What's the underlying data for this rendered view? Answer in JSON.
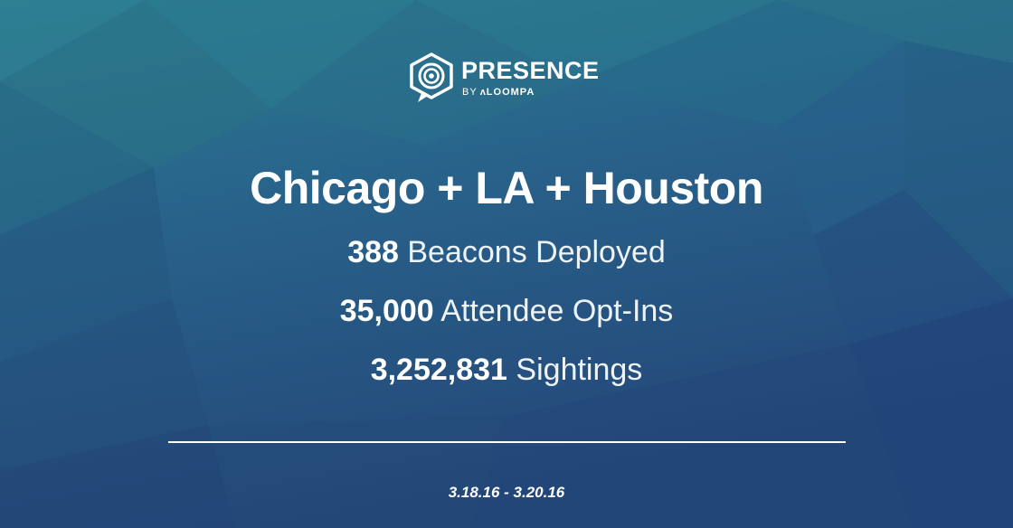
{
  "logo": {
    "name": "PRESENCE",
    "by": "BY",
    "sub_brand": "ʌLOOMPA"
  },
  "headline": "Chicago + LA + Houston",
  "stats": [
    {
      "value": "388",
      "label": "Beacons Deployed"
    },
    {
      "value": "35,000",
      "label": "Attendee Opt-Ins"
    },
    {
      "value": "3,252,831",
      "label": "Sightings"
    }
  ],
  "date_range": "3.18.16 - 3.20.16",
  "colors": {
    "background_top": "#2b7c8f",
    "background_bottom": "#25497a",
    "text": "#ffffff"
  }
}
